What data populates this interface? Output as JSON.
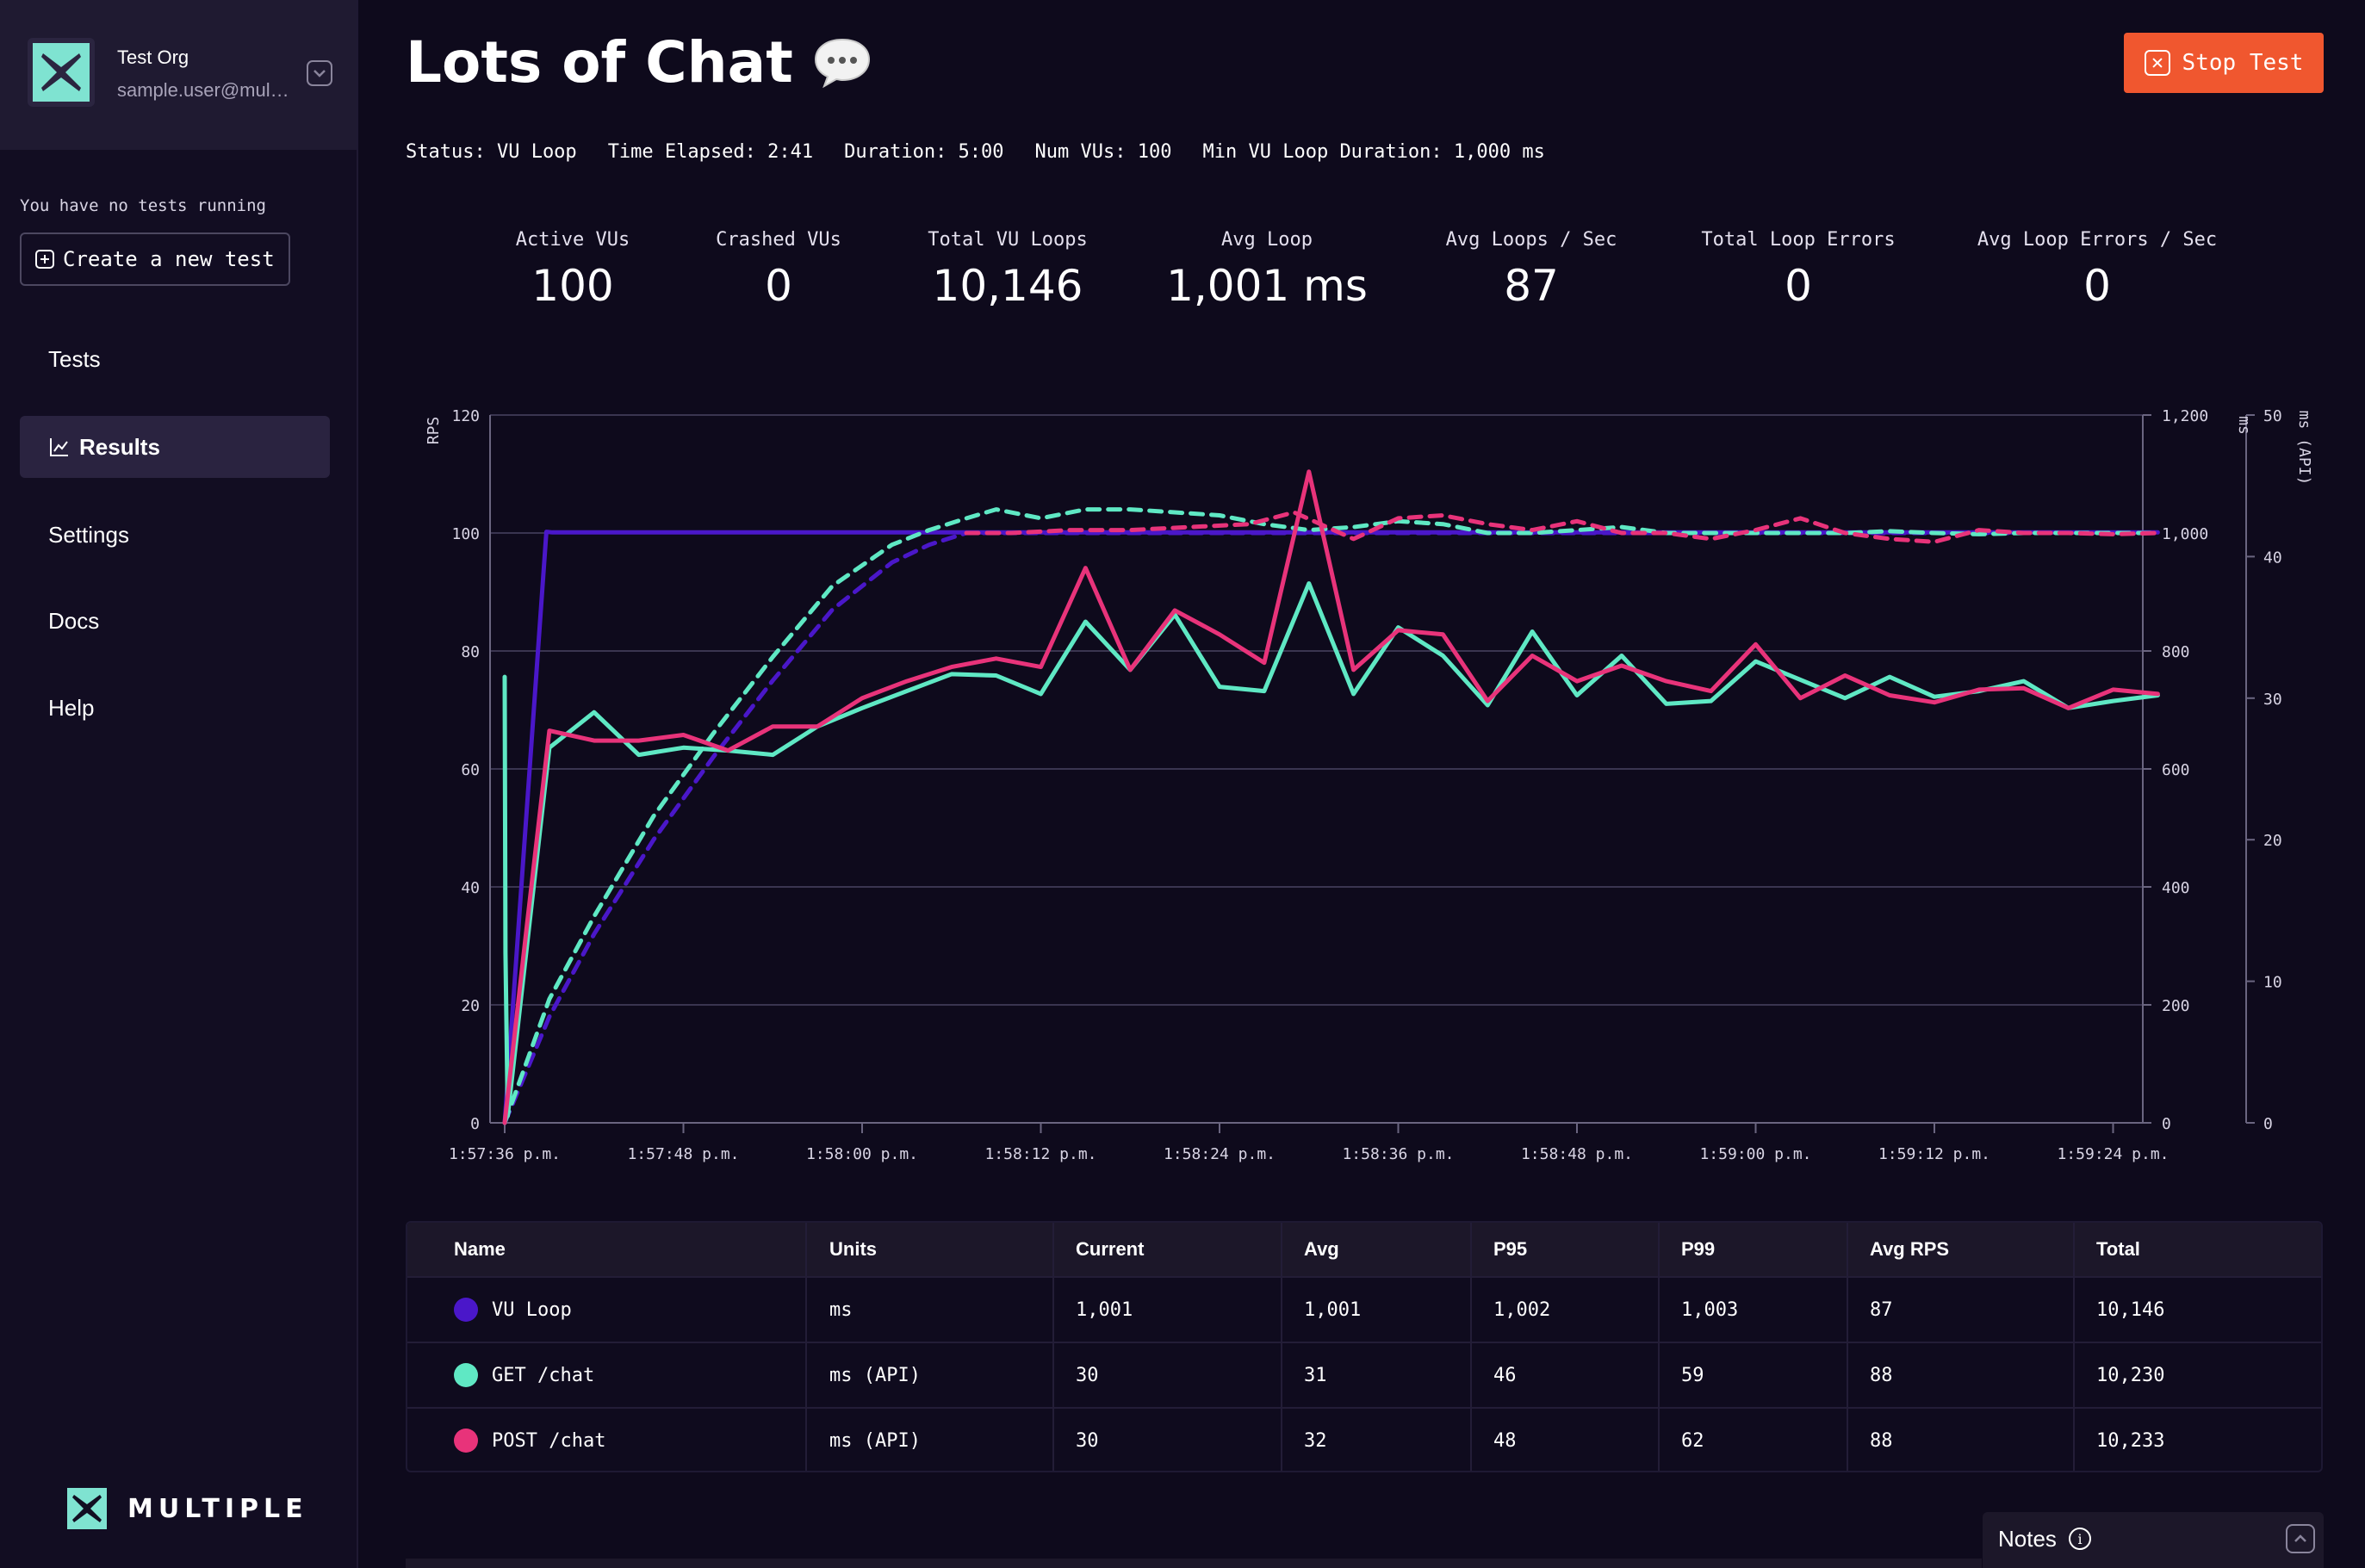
{
  "org": {
    "name": "Test Org",
    "email": "sample.user@multiple.dev"
  },
  "sidebar": {
    "no_tests_text": "You have no tests running",
    "create_button_label": "Create a new test",
    "items": [
      {
        "label": "Tests",
        "active": false
      },
      {
        "label": "Results",
        "active": true
      },
      {
        "label": "Settings",
        "active": false
      },
      {
        "label": "Docs",
        "active": false
      },
      {
        "label": "Help",
        "active": false
      }
    ],
    "brand": "MULTIPLE"
  },
  "header": {
    "title": "Lots of Chat",
    "stop_button_label": "Stop Test"
  },
  "status": {
    "status": "Status: VU Loop",
    "time_elapsed": "Time Elapsed: 2:41",
    "duration": "Duration: 5:00",
    "num_vus": "Num VUs: 100",
    "min_loop": "Min VU Loop Duration: 1,000 ms"
  },
  "stats": [
    {
      "label": "Active VUs",
      "value": "100"
    },
    {
      "label": "Crashed VUs",
      "value": "0"
    },
    {
      "label": "Total VU Loops",
      "value": "10,146"
    },
    {
      "label": "Avg Loop",
      "value": "1,001 ms"
    },
    {
      "label": "Avg Loops / Sec",
      "value": "87"
    },
    {
      "label": "Total Loop Errors",
      "value": "0"
    },
    {
      "label": "Avg Loop Errors / Sec",
      "value": "0"
    }
  ],
  "colors": {
    "vu_loop": "#4a17c9",
    "get_chat": "#5fe8c4",
    "post_chat": "#e8337a",
    "stop_button": "#f0572f"
  },
  "chart_data": {
    "type": "line",
    "grid": true,
    "x_ticks": [
      "1:57:36 p.m.",
      "1:57:48 p.m.",
      "1:58:00 p.m.",
      "1:58:12 p.m.",
      "1:58:24 p.m.",
      "1:58:36 p.m.",
      "1:58:48 p.m.",
      "1:59:00 p.m.",
      "1:59:12 p.m.",
      "1:59:24 p.m."
    ],
    "x_seconds_tick_step": 12,
    "axes": {
      "rps": {
        "label": "RPS",
        "ticks": [
          "0",
          "20",
          "40",
          "60",
          "80",
          "100",
          "120"
        ],
        "range": [
          0,
          120
        ]
      },
      "ms": {
        "label": "ms",
        "ticks": [
          "0",
          "200",
          "400",
          "600",
          "800",
          "1,000",
          "1,200"
        ],
        "range": [
          0,
          1200
        ]
      },
      "ms_api": {
        "label": "ms (API)",
        "ticks": [
          "0",
          "10",
          "20",
          "30",
          "40",
          "50"
        ],
        "range": [
          0,
          50
        ]
      }
    },
    "series": [
      {
        "name": "VU Loop",
        "axis": "ms",
        "style": "solid",
        "color": "#4a17c9",
        "t": [
          0,
          2.8,
          3.2,
          111
        ],
        "y": [
          0,
          1002,
          1001,
          1001
        ]
      },
      {
        "name": "VU Loop",
        "axis": "rps",
        "style": "dashed",
        "color": "#4a17c9",
        "t": [
          0,
          3,
          6,
          10,
          14,
          18,
          22,
          26,
          28.5,
          31,
          111
        ],
        "y": [
          0,
          18,
          32,
          48,
          62,
          75,
          87,
          95,
          98,
          100,
          100
        ]
      },
      {
        "name": "GET /chat",
        "axis": "ms_api",
        "style": "solid",
        "color": "#5fe8c4",
        "t": [
          0,
          0.05,
          0.2,
          3,
          6,
          9,
          12,
          15,
          18,
          21,
          24,
          27,
          30,
          33,
          36,
          39,
          42,
          45,
          48,
          51,
          54,
          57,
          60,
          63,
          66,
          69,
          72,
          75,
          78,
          81,
          84,
          87,
          90,
          93,
          96,
          99,
          102,
          105,
          108,
          111
        ],
        "y": [
          31.5,
          12,
          0.5,
          26.5,
          29,
          26,
          26.5,
          26.3,
          26,
          28,
          29.3,
          30.5,
          31.7,
          31.6,
          30.3,
          35.4,
          32,
          35.9,
          30.8,
          30.5,
          38.1,
          30.3,
          35,
          33,
          29.5,
          34.7,
          30.2,
          33,
          29.6,
          29.8,
          32.6,
          31.3,
          30,
          31.5,
          30.1,
          30.5,
          31.2,
          29.3,
          29.8,
          30.2
        ]
      },
      {
        "name": "GET /chat",
        "axis": "rps",
        "style": "dashed",
        "color": "#5fe8c4",
        "t": [
          0,
          3,
          6,
          10,
          14,
          18,
          22,
          26,
          28.5,
          31,
          33,
          36,
          39,
          42,
          45,
          48,
          51,
          54,
          57,
          60,
          63,
          66,
          69,
          72,
          75,
          78,
          81,
          84,
          87,
          90,
          93,
          96,
          99,
          102,
          105,
          108,
          111
        ],
        "y": [
          0,
          21,
          35,
          52,
          66,
          79,
          91,
          98,
          100.5,
          102.5,
          104,
          102.5,
          104,
          104,
          103.5,
          103,
          101.5,
          100.5,
          101,
          102,
          101.5,
          100,
          100,
          100.5,
          101,
          100,
          100,
          100,
          100,
          100,
          100.3,
          100,
          99.8,
          100,
          100,
          100,
          100
        ]
      },
      {
        "name": "POST /chat",
        "axis": "ms_api",
        "style": "solid",
        "color": "#e8337a",
        "t": [
          0,
          1.5,
          3,
          6,
          9,
          12,
          15,
          18,
          21,
          24,
          27,
          30,
          33,
          36,
          39,
          42,
          45,
          48,
          51,
          54,
          57,
          60,
          63,
          66,
          69,
          72,
          75,
          78,
          81,
          84,
          87,
          90,
          93,
          96,
          99,
          102,
          105,
          108,
          111
        ],
        "y": [
          0,
          14,
          27.7,
          27,
          27,
          27.4,
          26.3,
          28,
          28,
          30,
          31.2,
          32.2,
          32.8,
          32.2,
          39.2,
          32,
          36.2,
          34.5,
          32.5,
          46,
          32,
          34.8,
          34.5,
          29.8,
          33,
          31.2,
          32.3,
          31.2,
          30.5,
          33.8,
          30,
          31.6,
          30.2,
          29.7,
          30.6,
          30.7,
          29.3,
          30.6,
          30.3
        ]
      },
      {
        "name": "POST /chat",
        "axis": "rps",
        "style": "dashed",
        "color": "#e8337a",
        "t": [
          31,
          34,
          38,
          42,
          46,
          50,
          53,
          57,
          60,
          63,
          66,
          69,
          72,
          75,
          78,
          81,
          84,
          87,
          90,
          93,
          96,
          99,
          102,
          105,
          108,
          111
        ],
        "y": [
          100,
          100,
          100.5,
          100.5,
          101,
          101.5,
          103.5,
          99,
          102.5,
          103,
          101.5,
          100.5,
          102,
          100,
          100,
          99,
          100.5,
          102.5,
          100,
          99,
          98.5,
          100.5,
          100,
          100,
          99.8,
          100
        ]
      }
    ]
  },
  "table": {
    "headers": [
      "Name",
      "Units",
      "Current",
      "Avg",
      "P95",
      "P99",
      "Avg RPS",
      "Total"
    ],
    "rows": [
      {
        "name": "VU Loop",
        "color": "#4a17c9",
        "cells": [
          "ms",
          "1,001",
          "1,001",
          "1,002",
          "1,003",
          "87",
          "10,146"
        ]
      },
      {
        "name": "GET /chat",
        "color": "#5fe8c4",
        "cells": [
          "ms (API)",
          "30",
          "31",
          "46",
          "59",
          "88",
          "10,230"
        ]
      },
      {
        "name": "POST /chat",
        "color": "#e8337a",
        "cells": [
          "ms (API)",
          "30",
          "32",
          "48",
          "62",
          "88",
          "10,233"
        ]
      }
    ]
  },
  "notes": {
    "label": "Notes"
  }
}
